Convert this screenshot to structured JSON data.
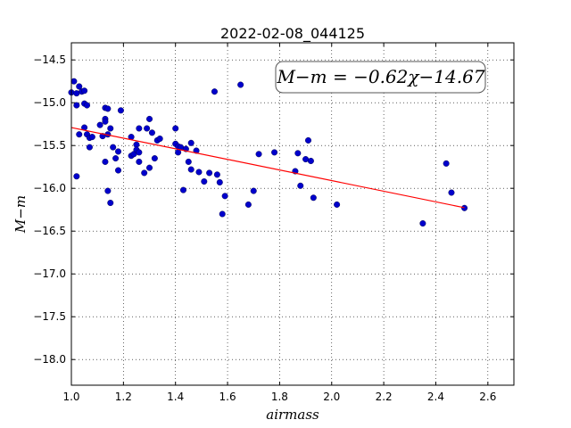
{
  "chart_data": {
    "type": "scatter",
    "title": "2022-02-08_044125",
    "xlabel": "airmass",
    "ylabel": "M−m",
    "xlim": [
      1.0,
      2.7
    ],
    "ylim": [
      -18.3,
      -14.3
    ],
    "xticks": [
      1.0,
      1.2,
      1.4,
      1.6,
      1.8,
      2.0,
      2.2,
      2.4,
      2.6
    ],
    "xtick_labels": [
      "1.0",
      "1.2",
      "1.4",
      "1.6",
      "1.8",
      "2.0",
      "2.2",
      "2.4",
      "2.6"
    ],
    "yticks": [
      -14.5,
      -15.0,
      -15.5,
      -16.0,
      -16.5,
      -17.0,
      -17.5,
      -18.0
    ],
    "ytick_labels": [
      "−14.5",
      "−15.0",
      "−15.5",
      "−16.0",
      "−16.5",
      "−17.0",
      "−17.5",
      "−18.0"
    ],
    "grid": true,
    "annotation": "M−m = −0.62χ−14.67",
    "fit": {
      "slope": -0.62,
      "intercept": -14.67,
      "x_range": [
        1.0,
        2.51
      ],
      "color": "#ff0000"
    },
    "points_color": "#0000cc",
    "points": [
      [
        1.0,
        -14.88
      ],
      [
        1.01,
        -14.75
      ],
      [
        1.02,
        -14.89
      ],
      [
        1.03,
        -14.81
      ],
      [
        1.04,
        -14.87
      ],
      [
        1.05,
        -14.86
      ],
      [
        1.05,
        -15.01
      ],
      [
        1.06,
        -15.03
      ],
      [
        1.02,
        -15.03
      ],
      [
        1.03,
        -15.37
      ],
      [
        1.05,
        -15.29
      ],
      [
        1.06,
        -15.37
      ],
      [
        1.07,
        -15.41
      ],
      [
        1.08,
        -15.4
      ],
      [
        1.07,
        -15.52
      ],
      [
        1.02,
        -15.86
      ],
      [
        1.11,
        -15.26
      ],
      [
        1.12,
        -15.39
      ],
      [
        1.13,
        -15.06
      ],
      [
        1.14,
        -15.07
      ],
      [
        1.13,
        -15.19
      ],
      [
        1.13,
        -15.22
      ],
      [
        1.14,
        -15.37
      ],
      [
        1.15,
        -15.3
      ],
      [
        1.13,
        -15.69
      ],
      [
        1.14,
        -16.03
      ],
      [
        1.15,
        -16.17
      ],
      [
        1.16,
        -15.52
      ],
      [
        1.18,
        -15.57
      ],
      [
        1.17,
        -15.65
      ],
      [
        1.18,
        -15.79
      ],
      [
        1.19,
        -15.09
      ],
      [
        1.23,
        -15.4
      ],
      [
        1.23,
        -15.62
      ],
      [
        1.24,
        -15.6
      ],
      [
        1.25,
        -15.49
      ],
      [
        1.25,
        -15.55
      ],
      [
        1.26,
        -15.3
      ],
      [
        1.26,
        -15.58
      ],
      [
        1.26,
        -15.69
      ],
      [
        1.28,
        -15.82
      ],
      [
        1.29,
        -15.3
      ],
      [
        1.3,
        -15.19
      ],
      [
        1.3,
        -15.76
      ],
      [
        1.31,
        -15.35
      ],
      [
        1.32,
        -15.65
      ],
      [
        1.33,
        -15.44
      ],
      [
        1.34,
        -15.42
      ],
      [
        1.4,
        -15.3
      ],
      [
        1.4,
        -15.48
      ],
      [
        1.41,
        -15.51
      ],
      [
        1.41,
        -15.58
      ],
      [
        1.42,
        -15.52
      ],
      [
        1.43,
        -16.02
      ],
      [
        1.44,
        -15.54
      ],
      [
        1.45,
        -15.69
      ],
      [
        1.46,
        -15.78
      ],
      [
        1.46,
        -15.47
      ],
      [
        1.48,
        -15.56
      ],
      [
        1.49,
        -15.81
      ],
      [
        1.51,
        -15.92
      ],
      [
        1.53,
        -15.82
      ],
      [
        1.55,
        -14.87
      ],
      [
        1.56,
        -15.84
      ],
      [
        1.57,
        -15.93
      ],
      [
        1.58,
        -16.3
      ],
      [
        1.59,
        -16.09
      ],
      [
        1.65,
        -14.79
      ],
      [
        1.68,
        -16.19
      ],
      [
        1.7,
        -16.03
      ],
      [
        1.72,
        -15.6
      ],
      [
        1.78,
        -15.58
      ],
      [
        1.86,
        -15.8
      ],
      [
        1.87,
        -15.59
      ],
      [
        1.88,
        -15.97
      ],
      [
        1.9,
        -15.66
      ],
      [
        1.91,
        -15.44
      ],
      [
        1.92,
        -15.68
      ],
      [
        1.93,
        -16.11
      ],
      [
        2.02,
        -16.19
      ],
      [
        2.35,
        -16.41
      ],
      [
        2.44,
        -15.71
      ],
      [
        2.46,
        -16.05
      ],
      [
        2.51,
        -16.23
      ]
    ]
  }
}
